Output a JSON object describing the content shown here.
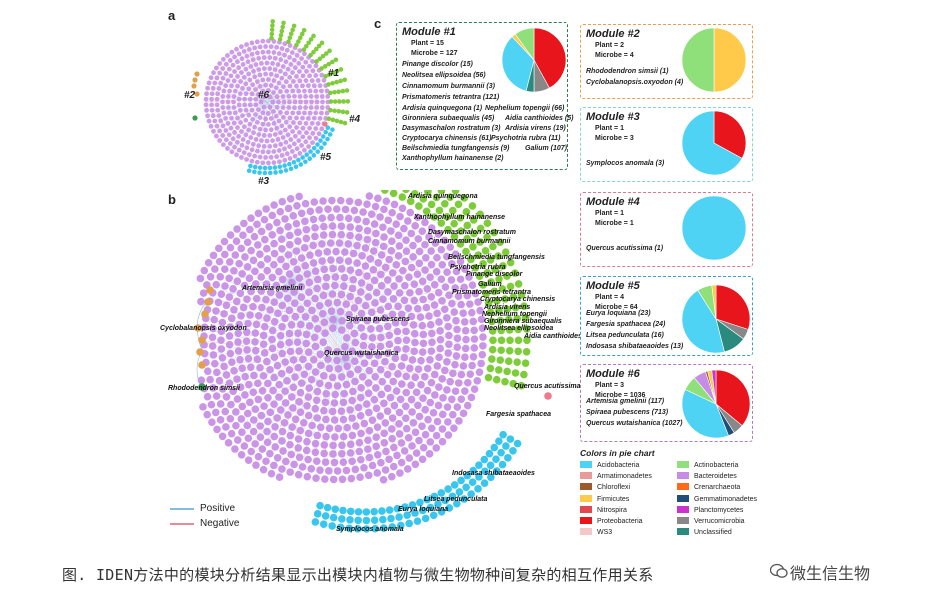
{
  "figure": {
    "panel_letters": {
      "a": "a",
      "b": "b",
      "c": "c"
    },
    "network_a": {
      "module_labels": [
        "#1",
        "#2",
        "#3",
        "#4",
        "#5",
        "#6"
      ]
    },
    "network_b": {
      "node_labels": [
        "Ardisia quinquegona",
        "Xanthophyllum hainanense",
        "Dasymaschalon rostratum",
        "Cinnamomum burmannii",
        "Beilschmiedia tungfangensis",
        "Psychotria rubra",
        "Pinange discolor",
        "Galium",
        "Prismatomeris tetrantra",
        "Cryptocarya chinensis",
        "Ardisia virens",
        "Nephelium topengii",
        "Gironniera subaequalis",
        "Neolitsea ellipsoidea",
        "Aidia canthioides",
        "Artemisia gmelinii",
        "Spiraea pubescens",
        "Quercus wutaishanica",
        "Cyclobalanopsis oxyodon",
        "Rhododendron simsii",
        "Quercus acutissima",
        "Fargesia spathacea",
        "Indosasa shibataeaoides",
        "Litsea pedunculata",
        "Eurya loquiana",
        "Symplocos anomala"
      ],
      "edge_legend": {
        "positive": "Positive",
        "negative": "Negative"
      },
      "edge_colors": {
        "positive": "#5aa9d6",
        "negative": "#e06478"
      }
    },
    "modules": [
      {
        "title": "Module #1",
        "border": "#2e7d4f",
        "plant": "Plant = 15",
        "microbe": "Microbe = 127",
        "species": [
          "Pinange discolor (15)",
          "Neolitsea ellipsoidea (56)",
          "Cinnamomum burmannii (3)",
          "Prismatomeris tetrantra (121)",
          "Ardisia quinquegona (1)",
          "Nephelium topengii (66)",
          "Gironniera subaequalis (45)",
          "Aidia canthioides (5)",
          "Dasymaschalon rostratum (3)",
          "Ardisia virens (19)",
          "Cryptocarya chinensis (61)",
          "Psychotria rubra (11)",
          "Beilschmiedia tungfangensis (9)",
          "Galium (107)",
          "Xanthophyllum hainanense (2)"
        ],
        "pie": [
          {
            "taxon": "Proteobacteria",
            "pct": 42
          },
          {
            "taxon": "Verrucomicrobia",
            "pct": 8
          },
          {
            "taxon": "Unclassified",
            "pct": 4
          },
          {
            "taxon": "Acidobacteria",
            "pct": 34
          },
          {
            "taxon": "Firmicutes",
            "pct": 2
          },
          {
            "taxon": "Actinobacteria",
            "pct": 10
          }
        ]
      },
      {
        "title": "Module #2",
        "border": "#e8a04a",
        "plant": "Plant = 2",
        "microbe": "Microbe = 4",
        "species": [
          "Rhododendron simsii (1)",
          "Cyclobalanopsis.oxyodon (4)"
        ],
        "pie": [
          {
            "taxon": "Firmicutes",
            "pct": 50
          },
          {
            "taxon": "Actinobacteria",
            "pct": 50
          }
        ]
      },
      {
        "title": "Module #3",
        "border": "#7fd8c8",
        "plant": "Plant = 1",
        "microbe": "Microbe = 3",
        "species": [
          "Symplocos anomala (3)"
        ],
        "pie": [
          {
            "taxon": "Proteobacteria",
            "pct": 33
          },
          {
            "taxon": "Acidobacteria",
            "pct": 67
          }
        ]
      },
      {
        "title": "Module #4",
        "border": "#e07a8e",
        "plant": "Plant = 1",
        "microbe": "Microbe = 1",
        "species": [
          "Quercus acutissima (1)"
        ],
        "pie": [
          {
            "taxon": "Acidobacteria",
            "pct": 100
          }
        ]
      },
      {
        "title": "Module #5",
        "border": "#3a9fd0",
        "plant": "Plant = 4",
        "microbe": "Microbe = 64",
        "species": [
          "Eurya loquiana (23)",
          "Fargesia spathacea (24)",
          "Litsea pedunculata (16)",
          "Indosasa shibataeaoides (13)"
        ],
        "pie": [
          {
            "taxon": "Proteobacteria",
            "pct": 30
          },
          {
            "taxon": "Verrucomicrobia",
            "pct": 5
          },
          {
            "taxon": "Unclassified",
            "pct": 11
          },
          {
            "taxon": "Acidobacteria",
            "pct": 45
          },
          {
            "taxon": "Actinobacteria",
            "pct": 7
          },
          {
            "taxon": "Firmicutes",
            "pct": 2
          }
        ]
      },
      {
        "title": "Module #6",
        "border": "#b07bb7",
        "plant": "Plant = 3",
        "microbe": "Microbe = 1036",
        "species": [
          "Artemisia gmelinii (117)",
          "Spiraea pubescens (713)",
          "Quercus wutaishanica (1027)"
        ],
        "pie": [
          {
            "taxon": "Proteobacteria",
            "pct": 36
          },
          {
            "taxon": "Verrucomicrobia",
            "pct": 5
          },
          {
            "taxon": "Gemmatimonadetes",
            "pct": 3
          },
          {
            "taxon": "Acidobacteria",
            "pct": 38
          },
          {
            "taxon": "Actinobacteria",
            "pct": 7
          },
          {
            "taxon": "Bacteroidetes",
            "pct": 6
          },
          {
            "taxon": "Chloroflexi",
            "pct": 1
          },
          {
            "taxon": "Firmicutes",
            "pct": 2
          },
          {
            "taxon": "Planctomycetes",
            "pct": 2
          }
        ]
      }
    ],
    "pie_legend": {
      "title": "Colors in pie chart",
      "items": [
        {
          "label": "Acidobacteria",
          "color": "#4fd3f5"
        },
        {
          "label": "Actinobacteria",
          "color": "#8fe07a"
        },
        {
          "label": "Armatimonadetes",
          "color": "#e89b9b"
        },
        {
          "label": "Bacteroidetes",
          "color": "#c78de6"
        },
        {
          "label": "Chloroflexi",
          "color": "#9c5a2c"
        },
        {
          "label": "Crenarchaeota",
          "color": "#ff6a1a"
        },
        {
          "label": "Firmicutes",
          "color": "#ffc94a"
        },
        {
          "label": "Gemmatimonadetes",
          "color": "#1f4e79"
        },
        {
          "label": "Nitrospira",
          "color": "#e0484f"
        },
        {
          "label": "Planctomycetes",
          "color": "#cc33cc"
        },
        {
          "label": "Proteobacteria",
          "color": "#e8161c"
        },
        {
          "label": "Verrucomicrobia",
          "color": "#888888"
        },
        {
          "label": "WS3",
          "color": "#f5c8c8"
        },
        {
          "label": "Unclassified",
          "color": "#2a8a7e"
        }
      ]
    },
    "node_colors": {
      "module1": "#7fcc3a",
      "module2": "#e2a04c",
      "module3": "#39c6ee",
      "module6": "#c58ae4",
      "plant_hub": "#3a9a58",
      "quercus_acutissima": "#f07a8a"
    }
  },
  "caption": "图.   IDEN方法中的模块分析结果显示出模块内植物与微生物物种间复杂的相互作用关系",
  "watermark": "微生信生物"
}
